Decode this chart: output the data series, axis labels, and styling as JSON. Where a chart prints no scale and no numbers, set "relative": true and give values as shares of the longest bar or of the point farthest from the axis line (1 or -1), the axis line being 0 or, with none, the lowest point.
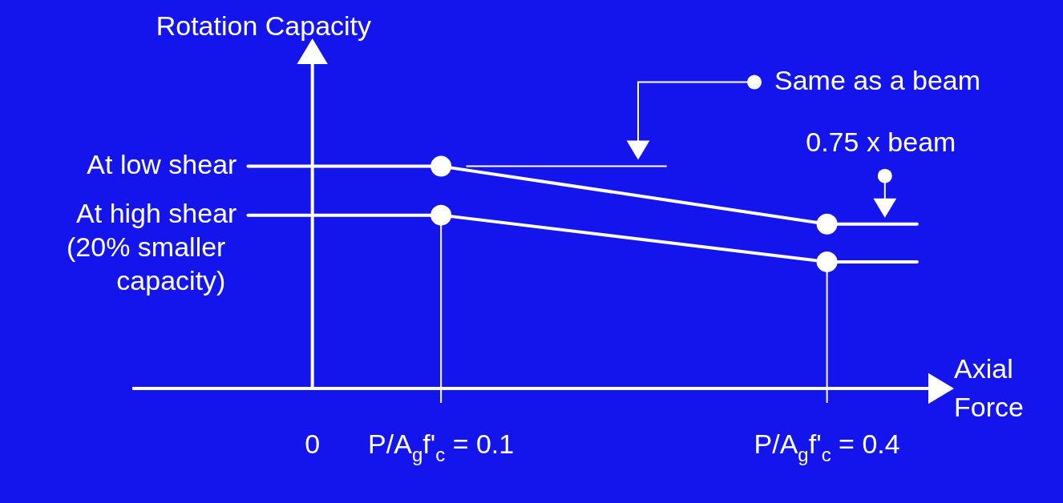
{
  "chart_data": {
    "type": "line",
    "relative": true,
    "xlabel": "Axial Force",
    "ylabel": "Rotation Capacity",
    "x": [
      -0.05,
      0.1,
      0.4,
      0.47
    ],
    "xlim": [
      -0.14,
      0.48
    ],
    "xticks": [
      0,
      {
        "value": 0.1,
        "label": "P/A$_{g}$f'$_{c}$ = 0.1"
      },
      {
        "value": 0.4,
        "label": "P/A$_{g}$f'$_{c}$ = 0.4"
      }
    ],
    "series": [
      {
        "name": "At low shear",
        "color": "#ffffff",
        "values": [
          1,
          1,
          0.74,
          0.74
        ]
      },
      {
        "name": "At high shear (20% smaller capacity)",
        "color": "#ffffff",
        "values": [
          0.78,
          0.78,
          0.57,
          0.57
        ]
      },
      {
        "color": "#ffffff",
        "x": [
          0.12,
          0.275
        ],
        "values": [
          1,
          1
        ],
        "marker": "none"
      }
    ],
    "marker": "circle",
    "line_style": "solid",
    "grid": false,
    "legend": false,
    "ref_lines": [
      {
        "axis": "x",
        "value": 0.1
      },
      {
        "axis": "x",
        "value": 0.4
      }
    ],
    "annotations": [
      "Same as a beam",
      {
        "text": "0.75 x beam",
        "x": 0.445,
        "y": 0.74
      }
    ]
  }
}
